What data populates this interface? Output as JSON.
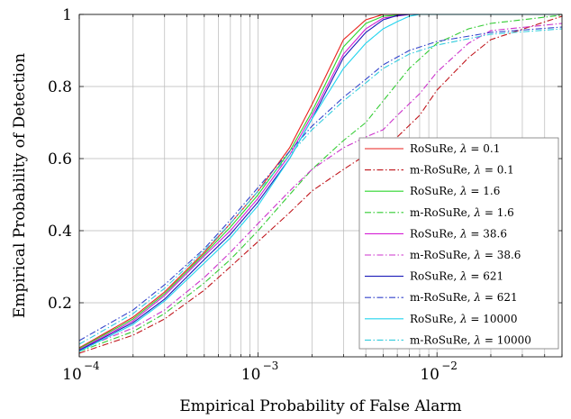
{
  "chart_data": {
    "type": "line",
    "title": "",
    "xlabel": "Empirical Probability of False Alarm",
    "ylabel": "Empirical Probability of Detection",
    "xscale": "log",
    "xlim": [
      0.0001,
      0.05
    ],
    "ylim": [
      0.05,
      1.0
    ],
    "x_ticks": [
      {
        "value": 0.0001,
        "base": "10",
        "exp": "−4"
      },
      {
        "value": 0.001,
        "base": "10",
        "exp": "−3"
      },
      {
        "value": 0.01,
        "base": "10",
        "exp": "−2"
      }
    ],
    "y_ticks": [
      {
        "value": 0.2,
        "label": "0.2"
      },
      {
        "value": 0.4,
        "label": "0.4"
      },
      {
        "value": 0.6,
        "label": "0.6"
      },
      {
        "value": 0.8,
        "label": "0.8"
      },
      {
        "value": 1.0,
        "label": "1"
      }
    ],
    "grid": true,
    "legend_position": "bottom-right",
    "series": [
      {
        "name_prefix": "RoSuRe, ",
        "lambda_value": "0.1",
        "color": "#e8211c",
        "style": "solid",
        "x": [
          0.0001,
          0.0002,
          0.0003,
          0.0005,
          0.0007,
          0.001,
          0.0015,
          0.002,
          0.003,
          0.004,
          0.005,
          0.007,
          0.01,
          0.05
        ],
        "y": [
          0.075,
          0.16,
          0.23,
          0.34,
          0.42,
          0.51,
          0.63,
          0.75,
          0.93,
          0.985,
          1.0,
          1.0,
          1.0,
          1.0
        ]
      },
      {
        "name_prefix": "m-RoSuRe, ",
        "lambda_value": "0.1",
        "color": "#c0151b",
        "style": "dashdot",
        "x": [
          0.0001,
          0.0002,
          0.0003,
          0.0005,
          0.0007,
          0.001,
          0.0015,
          0.002,
          0.003,
          0.004,
          0.006,
          0.008,
          0.01,
          0.015,
          0.02,
          0.05
        ],
        "y": [
          0.06,
          0.11,
          0.155,
          0.235,
          0.3,
          0.37,
          0.45,
          0.51,
          0.57,
          0.61,
          0.66,
          0.72,
          0.79,
          0.88,
          0.93,
          0.995
        ]
      },
      {
        "name_prefix": "RoSuRe, ",
        "lambda_value": "1.6",
        "color": "#2cd62c",
        "style": "solid",
        "x": [
          0.0001,
          0.0002,
          0.0003,
          0.0005,
          0.0007,
          0.001,
          0.0015,
          0.002,
          0.003,
          0.004,
          0.005,
          0.007,
          0.01,
          0.05
        ],
        "y": [
          0.073,
          0.155,
          0.225,
          0.335,
          0.41,
          0.5,
          0.62,
          0.73,
          0.91,
          0.975,
          0.995,
          1.0,
          1.0,
          1.0
        ]
      },
      {
        "name_prefix": "m-RoSuRe, ",
        "lambda_value": "1.6",
        "color": "#33cc33",
        "style": "dashdot",
        "x": [
          0.0001,
          0.0002,
          0.0003,
          0.0005,
          0.0007,
          0.001,
          0.0015,
          0.002,
          0.003,
          0.004,
          0.005,
          0.007,
          0.01,
          0.015,
          0.02,
          0.05
        ],
        "y": [
          0.065,
          0.12,
          0.17,
          0.255,
          0.32,
          0.4,
          0.5,
          0.57,
          0.65,
          0.7,
          0.76,
          0.85,
          0.92,
          0.96,
          0.975,
          0.998
        ]
      },
      {
        "name_prefix": "RoSuRe, ",
        "lambda_value": "38.6",
        "color": "#d41fd4",
        "style": "solid",
        "x": [
          0.0001,
          0.0002,
          0.0003,
          0.0005,
          0.0007,
          0.001,
          0.0015,
          0.002,
          0.003,
          0.004,
          0.005,
          0.007,
          0.01,
          0.05
        ],
        "y": [
          0.07,
          0.15,
          0.22,
          0.33,
          0.4,
          0.49,
          0.61,
          0.72,
          0.89,
          0.96,
          0.99,
          1.0,
          1.0,
          1.0
        ]
      },
      {
        "name_prefix": "m-RoSuRe, ",
        "lambda_value": "38.6",
        "color": "#cc33cc",
        "style": "dashdot",
        "x": [
          0.0001,
          0.0002,
          0.0003,
          0.0005,
          0.0007,
          0.001,
          0.0015,
          0.002,
          0.003,
          0.004,
          0.005,
          0.006,
          0.008,
          0.01,
          0.015,
          0.02,
          0.05
        ],
        "y": [
          0.07,
          0.13,
          0.18,
          0.27,
          0.34,
          0.42,
          0.51,
          0.57,
          0.63,
          0.66,
          0.68,
          0.72,
          0.78,
          0.84,
          0.92,
          0.955,
          0.975
        ]
      },
      {
        "name_prefix": "RoSuRe, ",
        "lambda_value": "621",
        "color": "#1a1ab8",
        "style": "solid",
        "x": [
          0.0001,
          0.0002,
          0.0003,
          0.0005,
          0.0007,
          0.001,
          0.0015,
          0.002,
          0.003,
          0.004,
          0.005,
          0.006,
          0.007,
          0.01,
          0.05
        ],
        "y": [
          0.068,
          0.145,
          0.21,
          0.32,
          0.39,
          0.48,
          0.6,
          0.71,
          0.88,
          0.95,
          0.985,
          0.997,
          1.0,
          1.0,
          1.0
        ]
      },
      {
        "name_prefix": "m-RoSuRe, ",
        "lambda_value": "621",
        "color": "#3344cc",
        "style": "dashdot",
        "x": [
          0.0001,
          0.0002,
          0.0003,
          0.0005,
          0.0007,
          0.001,
          0.0015,
          0.002,
          0.003,
          0.004,
          0.005,
          0.007,
          0.01,
          0.02,
          0.05
        ],
        "y": [
          0.095,
          0.18,
          0.25,
          0.35,
          0.43,
          0.52,
          0.62,
          0.69,
          0.77,
          0.82,
          0.86,
          0.9,
          0.925,
          0.95,
          0.965
        ]
      },
      {
        "name_prefix": "RoSuRe, ",
        "lambda_value": "10000",
        "color": "#22d4ee",
        "style": "solid",
        "x": [
          0.0001,
          0.0002,
          0.0003,
          0.0005,
          0.0007,
          0.001,
          0.0015,
          0.002,
          0.003,
          0.004,
          0.005,
          0.006,
          0.007,
          0.008,
          0.01,
          0.05
        ],
        "y": [
          0.065,
          0.14,
          0.205,
          0.31,
          0.38,
          0.47,
          0.6,
          0.71,
          0.85,
          0.92,
          0.96,
          0.98,
          0.995,
          1.0,
          1.0,
          1.0
        ]
      },
      {
        "name_prefix": "m-RoSuRe, ",
        "lambda_value": "10000",
        "color": "#33ccdd",
        "style": "dashdot",
        "x": [
          0.0001,
          0.0002,
          0.0003,
          0.0005,
          0.0007,
          0.001,
          0.0015,
          0.002,
          0.003,
          0.004,
          0.005,
          0.007,
          0.01,
          0.02,
          0.05
        ],
        "y": [
          0.085,
          0.17,
          0.24,
          0.345,
          0.42,
          0.51,
          0.61,
          0.68,
          0.76,
          0.81,
          0.85,
          0.89,
          0.915,
          0.945,
          0.96
        ]
      }
    ]
  }
}
